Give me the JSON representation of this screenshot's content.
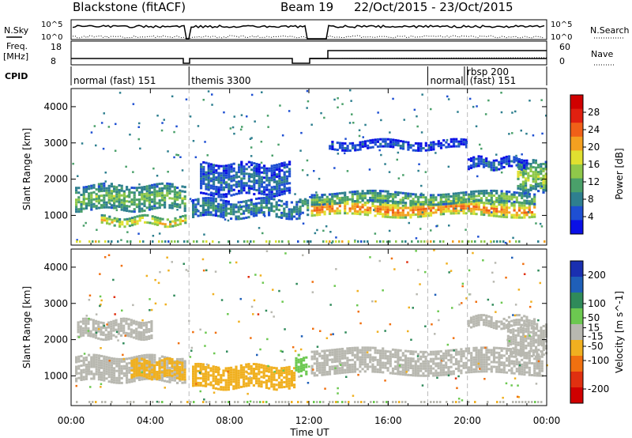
{
  "header": {
    "station": "Blackstone (fitACF)",
    "beam": "Beam 19",
    "date_range": "22/Oct/2015 - 23/Oct/2015"
  },
  "noise_panel": {
    "left_label": "N.Sky",
    "right_label": "N.Search",
    "left_ticks": [
      "10^5",
      "10^0"
    ],
    "right_ticks": [
      "10^5",
      "10^0"
    ]
  },
  "freq_panel": {
    "left_label_1": "Freq.",
    "left_label_2": "[MHz]",
    "left_ticks": [
      "18",
      "8"
    ],
    "right_label": "Nave",
    "right_ticks": [
      "60",
      "0"
    ]
  },
  "cpid": {
    "label": "CPID",
    "segments": [
      {
        "name": "normal (fast) 151",
        "start_h": 0.0
      },
      {
        "name": "themis 3300",
        "start_h": 5.95
      },
      {
        "name": "normal",
        "start_h": 18.0
      },
      {
        "name": "rbsp 200",
        "start_h": 19.85
      },
      {
        "name": "(fast) 151",
        "start_h": 20.0
      }
    ]
  },
  "x_axis": {
    "label": "Time UT",
    "ticks": [
      "00:00",
      "04:00",
      "08:00",
      "12:00",
      "16:00",
      "20:00",
      "00:00"
    ],
    "range_h": [
      0,
      24
    ]
  },
  "chart_data": [
    {
      "type": "heatmap",
      "name": "power",
      "ylabel": "Slant Range [km]",
      "ylim": [
        180,
        4500
      ],
      "yticks": [
        1000,
        2000,
        3000,
        4000
      ],
      "colorbar_label": "Power [dB]",
      "colorbar_ticks": [
        4,
        8,
        12,
        16,
        20,
        24,
        28
      ],
      "colorbar_range": [
        0,
        32
      ],
      "colors": [
        "#0a10e6",
        "#1e4fd2",
        "#2e7f8f",
        "#4aa06a",
        "#8fc84a",
        "#e0e030",
        "#f4a020",
        "#f06018",
        "#e02010",
        "#d00000"
      ],
      "bands": [
        {
          "t": [
            0.2,
            5.8
          ],
          "center": 1500,
          "width": 700,
          "level": 14
        },
        {
          "t": [
            1.5,
            5.8
          ],
          "center": 850,
          "width": 250,
          "level": 20
        },
        {
          "t": [
            6.1,
            11.5
          ],
          "center": 1200,
          "width": 500,
          "level": 10
        },
        {
          "t": [
            6.5,
            11.0
          ],
          "center": 2000,
          "width": 900,
          "level": 7
        },
        {
          "t": [
            11.5,
            11.9
          ],
          "center": 1300,
          "width": 400,
          "level": 12
        },
        {
          "t": [
            12.1,
            23.4
          ],
          "center": 1200,
          "width": 450,
          "level": 24
        },
        {
          "t": [
            12.1,
            23.4
          ],
          "center": 1500,
          "width": 300,
          "level": 14
        },
        {
          "t": [
            22.5,
            24.0
          ],
          "center": 2100,
          "width": 800,
          "level": 16
        },
        {
          "t": [
            13.0,
            20.0
          ],
          "center": 2950,
          "width": 250,
          "level": 5
        },
        {
          "t": [
            20.0,
            23.0
          ],
          "center": 2450,
          "width": 300,
          "level": 6
        }
      ]
    },
    {
      "type": "heatmap",
      "name": "velocity",
      "ylabel": "Slant Range [km]",
      "ylim": [
        180,
        4500
      ],
      "yticks": [
        1000,
        2000,
        3000,
        4000
      ],
      "colorbar_label": "Velocity [m s^-1]",
      "colorbar_ticks": [
        200,
        100,
        50,
        15,
        -15,
        -50,
        -100,
        -200
      ],
      "colorbar_range": [
        -250,
        250
      ],
      "colors": [
        "#1a2fb0",
        "#1f5fb8",
        "#2f8a5a",
        "#6cc850",
        "#b8b8b0",
        "#f0b020",
        "#f07010",
        "#e03010",
        "#d00000"
      ],
      "bands": [
        {
          "t": [
            0.2,
            5.8
          ],
          "center": 1200,
          "width": 700,
          "level": 0
        },
        {
          "t": [
            0.3,
            4.0
          ],
          "center": 2300,
          "width": 500,
          "level": 0
        },
        {
          "t": [
            3.0,
            5.8
          ],
          "center": 1200,
          "width": 500,
          "level": -60
        },
        {
          "t": [
            6.1,
            11.3
          ],
          "center": 1000,
          "width": 600,
          "level": -80
        },
        {
          "t": [
            11.3,
            11.9
          ],
          "center": 1300,
          "width": 500,
          "level": 60
        },
        {
          "t": [
            12.1,
            23.8
          ],
          "center": 1400,
          "width": 700,
          "level": 0
        },
        {
          "t": [
            22.0,
            24.0
          ],
          "center": 2000,
          "width": 800,
          "level": 0
        },
        {
          "t": [
            20.0,
            23.5
          ],
          "center": 2500,
          "width": 300,
          "level": 0
        }
      ]
    }
  ]
}
